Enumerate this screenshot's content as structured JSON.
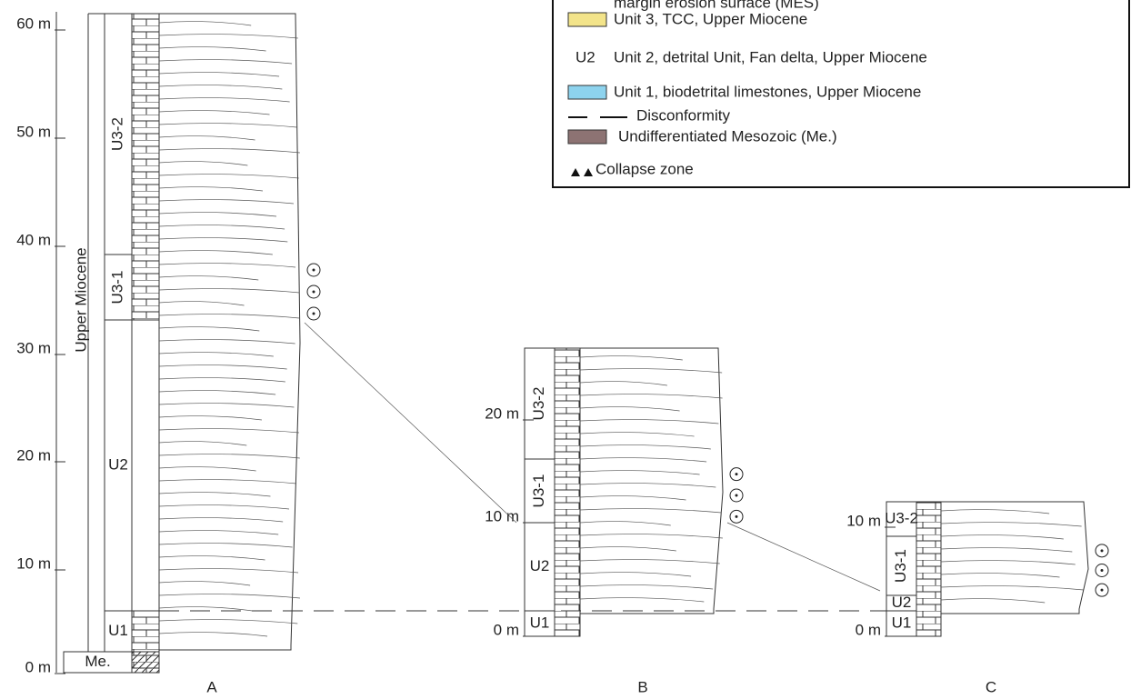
{
  "legend": {
    "items": [
      {
        "label": "margin erosion surface (MES)"
      },
      {
        "label": "Unit 3, TCC, Upper Miocene"
      },
      {
        "code": "U2",
        "label": "Unit 2, detrital Unit, Fan delta, Upper Miocene"
      },
      {
        "label": "Unit 1, biodetrital limestones, Upper Miocene"
      },
      {
        "label": "Disconformity"
      },
      {
        "label": "Undifferentiated Mesozoic (Me.)"
      },
      {
        "label": "Collapse zone"
      }
    ]
  },
  "sections": [
    {
      "name": "A",
      "depths": [
        "60 m",
        "50 m",
        "40 m",
        "30 m",
        "20 m",
        "10 m",
        "0 m"
      ],
      "units": [
        "U3-2",
        "U3-1",
        "U2",
        "U1",
        "Me."
      ],
      "period": "Upper Miocene"
    },
    {
      "name": "B",
      "depths": [
        "20 m",
        "10 m",
        "0 m"
      ],
      "units": [
        "U3-2",
        "U3-1",
        "U2",
        "U1"
      ]
    },
    {
      "name": "C",
      "depths": [
        "10 m",
        "0 m"
      ],
      "units": [
        "U3-2",
        "U3-1",
        "U2",
        "U1"
      ]
    }
  ]
}
